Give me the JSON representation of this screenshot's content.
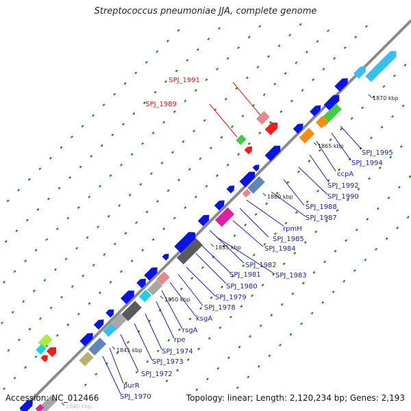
{
  "title": "Streptococcus pneumoniae JJA, complete genome",
  "accession": "Accession: NC_012466",
  "summary": "Topology: linear; Length: 2,120,234 bp; Genes: 2,193",
  "colors": {
    "dark_blue": "#0a14e0",
    "light_blue": "#38bff0",
    "cyan": "#20d0e0",
    "pink": "#e8888e",
    "red": "#ff1a1a",
    "magenta": "#e020a0",
    "green": "#44cc44",
    "lime": "#a8ee40",
    "orange": "#ff8c10",
    "steel": "#5f87b5",
    "gray": "#a8a8a8",
    "dark_gray": "#5a5a5a",
    "olive": "#b8b070",
    "tick_green": "#1a8a1a",
    "label_red": "#dd1111",
    "label_blue": "#1a1aaa"
  },
  "ticks": [
    {
      "label": "1845 kbp"
    },
    {
      "label": "1850 kbp"
    },
    {
      "label": "1855 kbp"
    },
    {
      "label": "1860 kbp"
    },
    {
      "label": "1865 kbp"
    },
    {
      "label": "1870 kbp"
    },
    {
      "label": "1840 kbp"
    }
  ],
  "gene_labels": [
    {
      "text": "SPJ_1991",
      "color": "red"
    },
    {
      "text": "SPJ_1989",
      "color": "red"
    },
    {
      "text": "SPJ_1995",
      "color": "blue"
    },
    {
      "text": "SPJ_1994",
      "color": "blue"
    },
    {
      "text": "ccpA",
      "color": "blue"
    },
    {
      "text": "SPJ_1992",
      "color": "blue"
    },
    {
      "text": "SPJ_1990",
      "color": "blue"
    },
    {
      "text": "SPJ_1988",
      "color": "blue"
    },
    {
      "text": "SPJ_1987",
      "color": "blue"
    },
    {
      "text": "rpmH",
      "color": "blue"
    },
    {
      "text": "SPJ_1985",
      "color": "blue"
    },
    {
      "text": "SPJ_1984",
      "color": "blue"
    },
    {
      "text": "SPJ_1982",
      "color": "blue"
    },
    {
      "text": "SPJ_1983",
      "color": "blue"
    },
    {
      "text": "SPJ_1981",
      "color": "blue"
    },
    {
      "text": "SPJ_1980",
      "color": "blue"
    },
    {
      "text": "SPJ_1979",
      "color": "blue"
    },
    {
      "text": "SPJ_1978",
      "color": "blue"
    },
    {
      "text": "ksgA",
      "color": "blue"
    },
    {
      "text": "rsgA",
      "color": "blue"
    },
    {
      "text": "rpe",
      "color": "blue"
    },
    {
      "text": "SPJ_1974",
      "color": "blue"
    },
    {
      "text": "SPJ_1973",
      "color": "blue"
    },
    {
      "text": "SPJ_1972",
      "color": "blue"
    },
    {
      "text": "purR",
      "color": "blue"
    },
    {
      "text": "SPJ_1970",
      "color": "blue"
    }
  ]
}
